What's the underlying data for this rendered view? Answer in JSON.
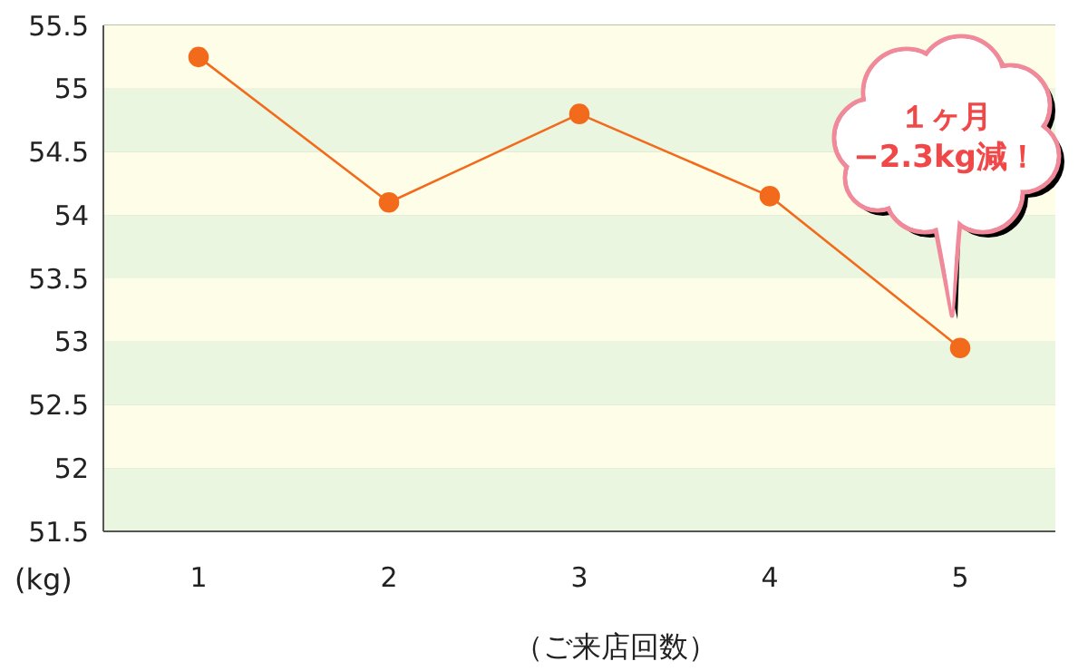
{
  "chart_data": {
    "type": "line",
    "xlabel": "（ご来店回数）",
    "ylabel": "(kg)",
    "categories": [
      "1",
      "2",
      "3",
      "4",
      "5"
    ],
    "series": [
      {
        "color": "#f26a1b",
        "values": [
          55.25,
          54.1,
          54.8,
          54.15,
          52.95
        ]
      }
    ],
    "ylim": [
      51.5,
      55.5
    ],
    "yticks": [
      51.5,
      52,
      52.5,
      53,
      53.5,
      54,
      54.5,
      55,
      55.5
    ],
    "grid": "y",
    "marker": "circle",
    "line_style": "solid",
    "legend": false,
    "bands": [
      {
        "axis": "y",
        "from": 51.5,
        "to": 52,
        "color": "#eaf6df"
      },
      {
        "axis": "y",
        "from": 52,
        "to": 52.5,
        "color": "#fefde8"
      },
      {
        "axis": "y",
        "from": 52.5,
        "to": 53,
        "color": "#eaf6df"
      },
      {
        "axis": "y",
        "from": 53,
        "to": 53.5,
        "color": "#fefde8"
      },
      {
        "axis": "y",
        "from": 53.5,
        "to": 54,
        "color": "#eaf6df"
      },
      {
        "axis": "y",
        "from": 54,
        "to": 54.5,
        "color": "#fefde8"
      },
      {
        "axis": "y",
        "from": 54.5,
        "to": 55,
        "color": "#eaf6df"
      },
      {
        "axis": "y",
        "from": 55,
        "to": 55.5,
        "color": "#fefde8"
      }
    ],
    "annotations": [
      "１ヶ月\n−2.3kg減！"
    ]
  }
}
